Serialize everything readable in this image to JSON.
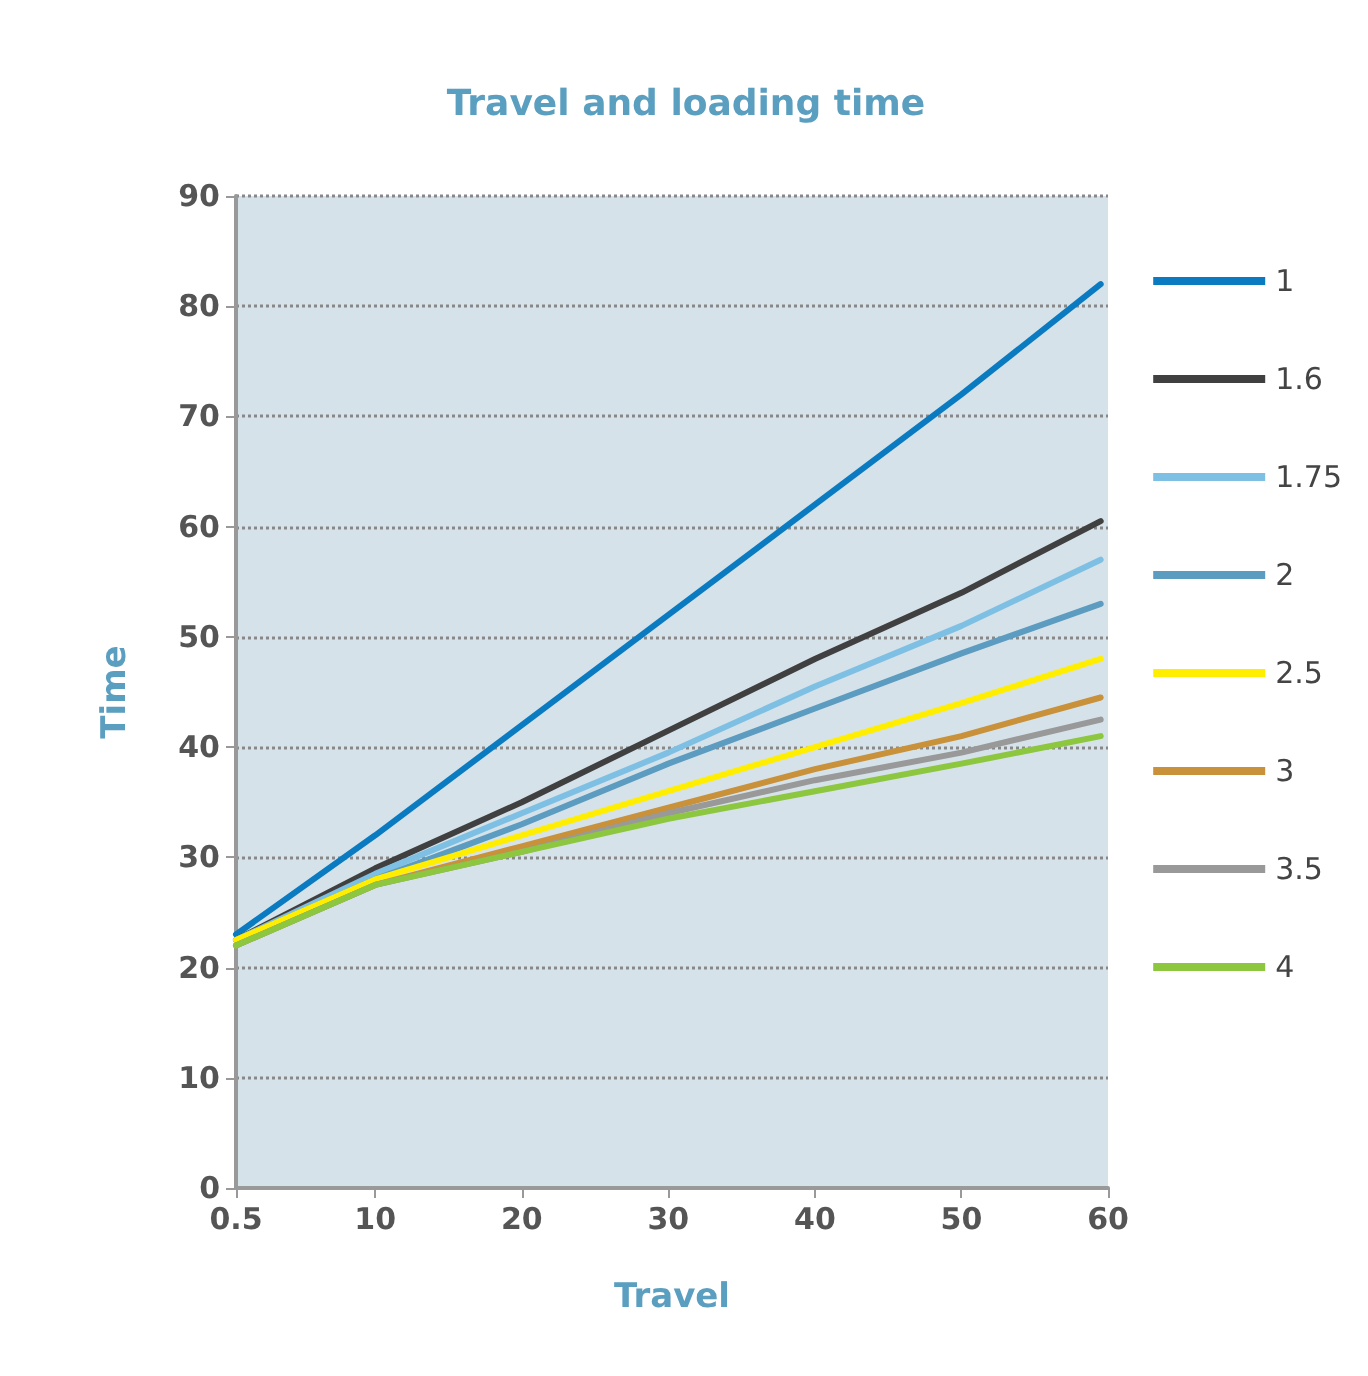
{
  "chart_data": {
    "type": "line",
    "title": "Travel and loading time",
    "xlabel": "Travel",
    "ylabel": "Time",
    "x": [
      0.5,
      10,
      20,
      30,
      40,
      50,
      59.5
    ],
    "series": [
      {
        "name": "1",
        "color": "#0a7bc1",
        "values": [
          23,
          32,
          42,
          52,
          62,
          72,
          82
        ]
      },
      {
        "name": "1.6",
        "color": "#404040",
        "values": [
          22.5,
          29,
          35,
          41.5,
          48,
          54,
          60.5
        ]
      },
      {
        "name": "1.75",
        "color": "#7ec0e4",
        "values": [
          22.5,
          28.5,
          34,
          39.5,
          45.5,
          51,
          57
        ]
      },
      {
        "name": "2",
        "color": "#5b9cc0",
        "values": [
          22.5,
          28,
          33,
          38.5,
          43.5,
          48.5,
          53
        ]
      },
      {
        "name": "2.5",
        "color": "#ffee00",
        "values": [
          22.5,
          28,
          32,
          36,
          40,
          44,
          48
        ]
      },
      {
        "name": "3",
        "color": "#c8913a",
        "values": [
          22,
          27.5,
          31,
          34.5,
          38,
          41,
          44.5
        ]
      },
      {
        "name": "3.5",
        "color": "#999999",
        "values": [
          22,
          27.5,
          30.5,
          34,
          37,
          39.5,
          42.5
        ]
      },
      {
        "name": "4",
        "color": "#8dc63f",
        "values": [
          22,
          27.5,
          30.5,
          33.5,
          36,
          38.5,
          41
        ]
      }
    ],
    "xlim": [
      0.5,
      60
    ],
    "xticks": [
      0.5,
      10,
      20,
      30,
      40,
      50,
      60
    ],
    "ylim": [
      0,
      90
    ],
    "yticks": [
      0,
      10,
      20,
      30,
      40,
      50,
      60,
      70,
      80,
      90
    ],
    "grid": "y",
    "legend": "right",
    "marker": "none",
    "line_style": "solid"
  }
}
